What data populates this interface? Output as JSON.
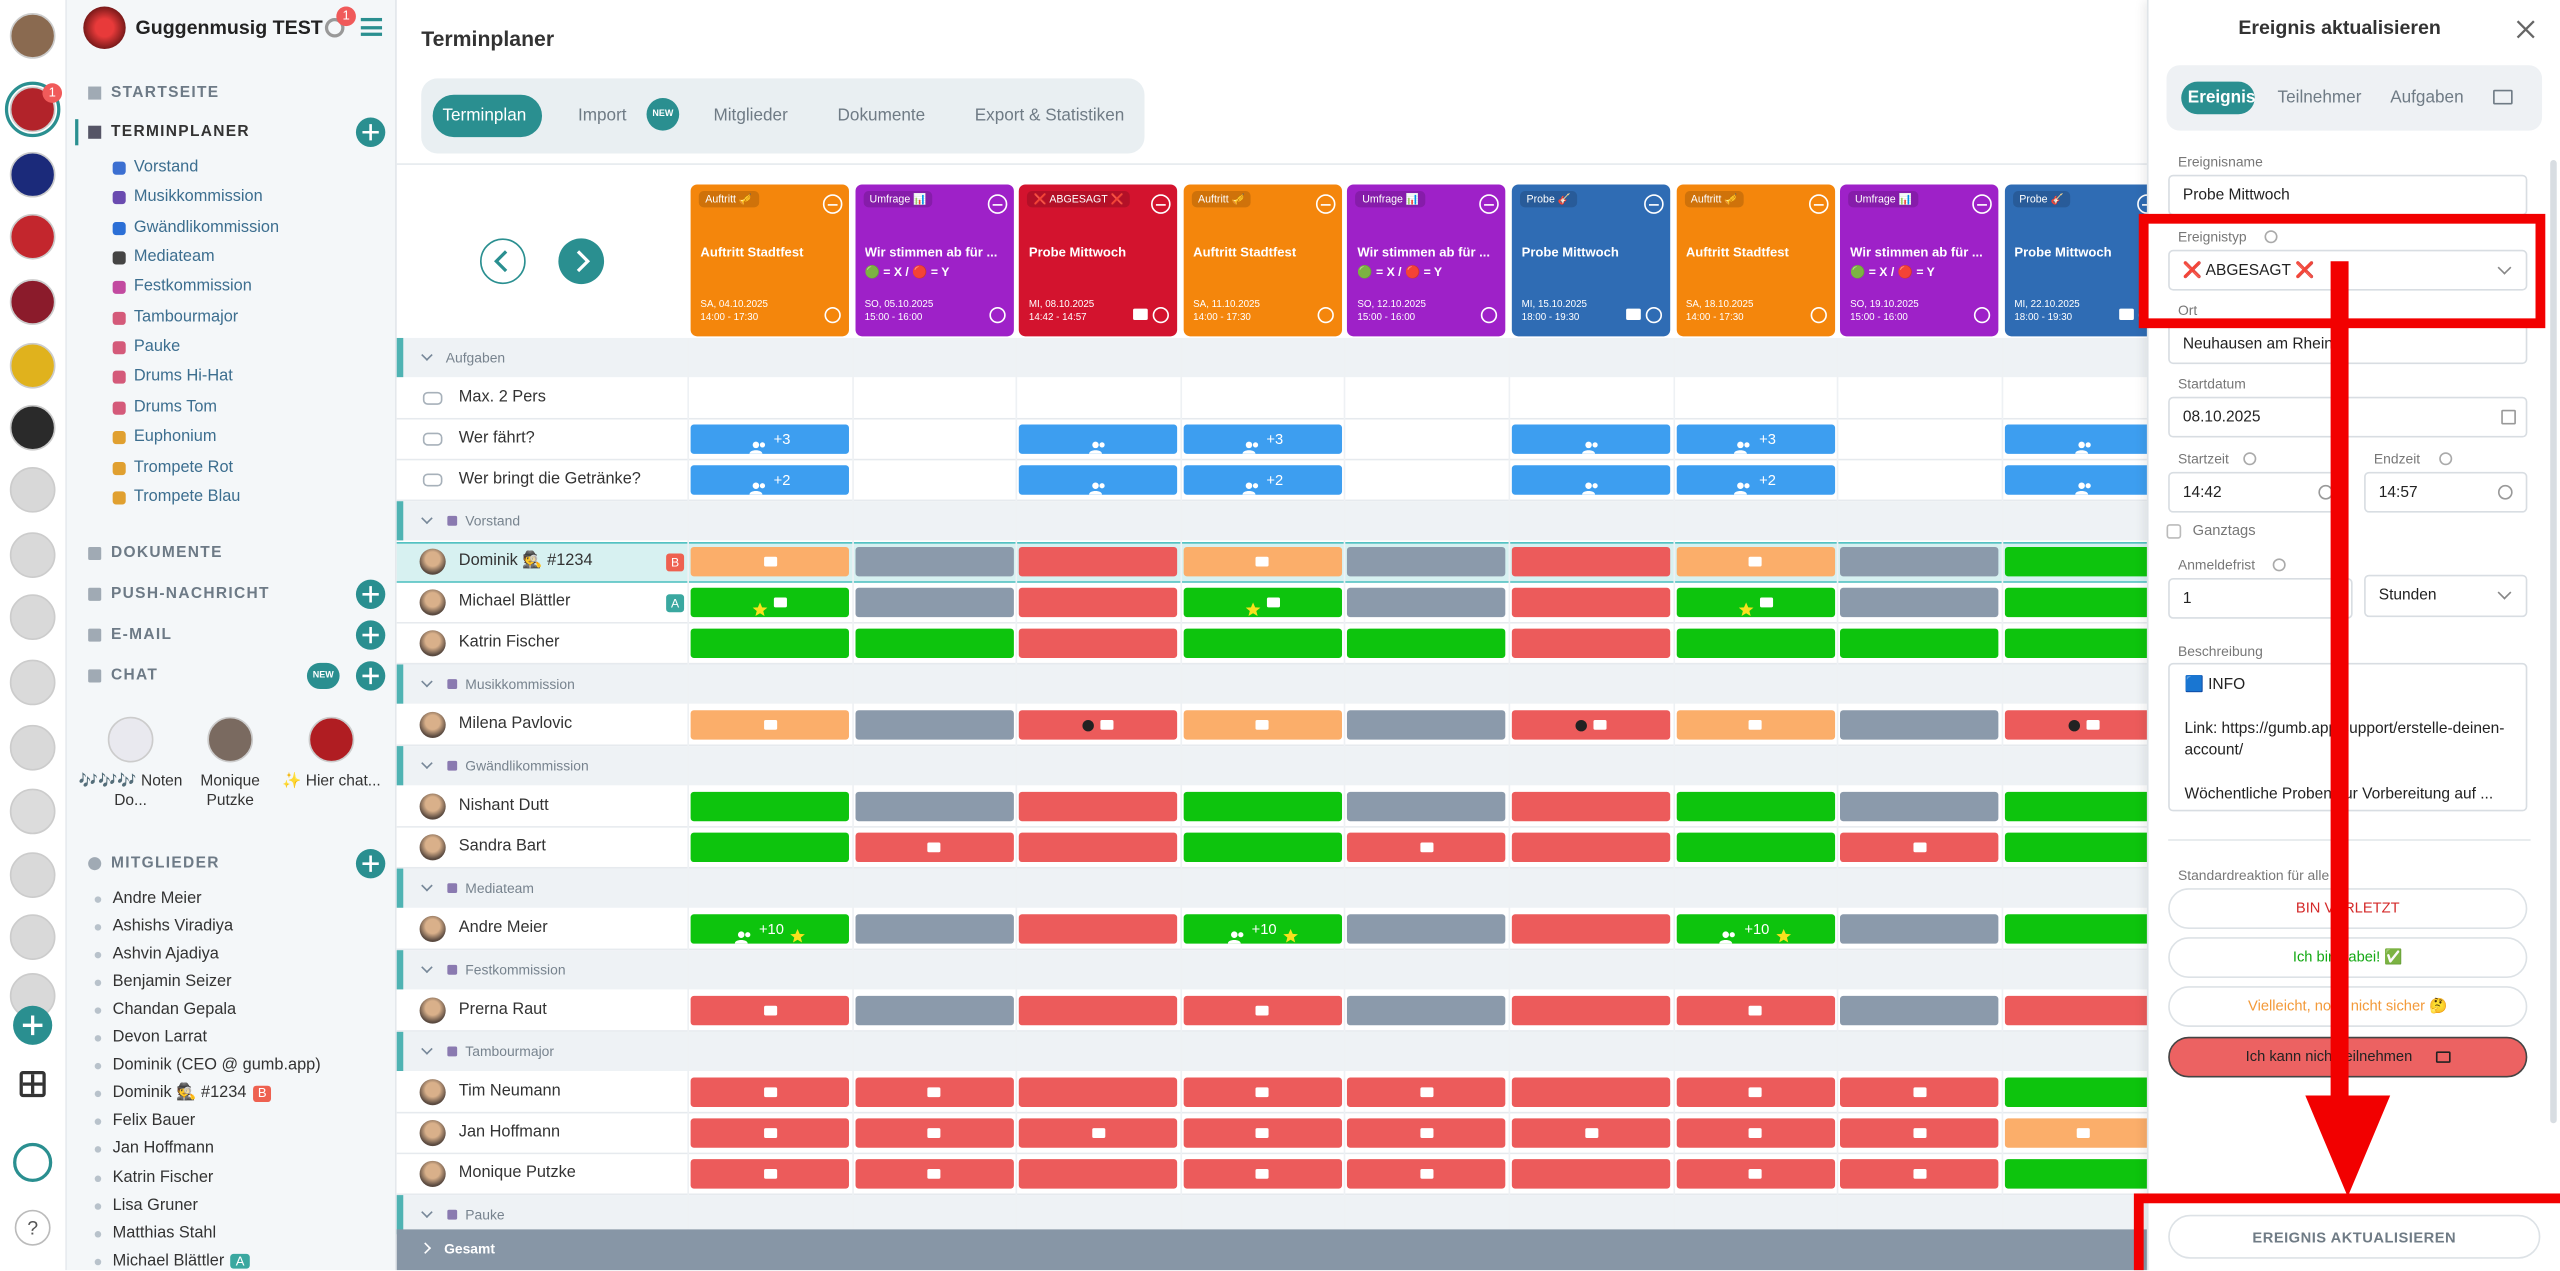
{
  "app": {
    "group_name": "Guggenmusig TEST",
    "notification_badge": "1",
    "help": "?"
  },
  "sidebar": {
    "startseite": "STARTSEITE",
    "terminplaner": "TERMINPLANER",
    "groups": [
      "Vorstand",
      "Musikkommission",
      "Gwändlikommission",
      "Mediateam",
      "Festkommission",
      "Tambourmajor",
      "Pauke",
      "Drums Hi-Hat",
      "Drums Tom",
      "Euphonium",
      "Trompete Rot",
      "Trompete Blau"
    ],
    "sections": [
      "DOKUMENTE",
      "PUSH-NACHRICHT",
      "E-MAIL",
      "CHAT"
    ],
    "chat_badge": "NEW",
    "chats": [
      "🎶🎶🎶 Noten Do...",
      "Monique Putzke",
      "✨ Hier chat..."
    ],
    "members_title": "MITGLIEDER",
    "members": [
      {
        "name": "Andre Meier"
      },
      {
        "name": "Ashishs Viradiya"
      },
      {
        "name": "Ashvin Ajadiya"
      },
      {
        "name": "Benjamin Seizer"
      },
      {
        "name": "Chandan Gepala"
      },
      {
        "name": "Devon Larrat"
      },
      {
        "name": "Dominik (CEO @ gumb.app)"
      },
      {
        "name": "Dominik 🕵️ #1234",
        "badge": "B"
      },
      {
        "name": "Felix Bauer"
      },
      {
        "name": "Jan Hoffmann"
      },
      {
        "name": "Katrin Fischer"
      },
      {
        "name": "Lisa Gruner"
      },
      {
        "name": "Matthias Stahl"
      },
      {
        "name": "Michael Blättler",
        "badge": "A"
      }
    ]
  },
  "header": {
    "title": "Terminplaner"
  },
  "tabs": {
    "items": [
      "Terminplan",
      "Import",
      "Mitglieder",
      "Dokumente",
      "Export & Statistiken"
    ],
    "active": 0,
    "import_badge": "NEW"
  },
  "events": [
    {
      "tag": "Auftritt 🎺",
      "title": "Auftritt Stadtfest",
      "date": "SA, 04.10.2025",
      "time": "14:00 - 17:30",
      "color": "#f4860c"
    },
    {
      "tag": "Umfrage 📊",
      "title": "Wir stimmen ab für ...",
      "subtitle": "🟢 = X / 🔴 = Y",
      "date": "SO, 05.10.2025",
      "time": "15:00 - 16:00",
      "color": "#9e21c8"
    },
    {
      "tag": "❌ ABGESAGT ❌",
      "title": "Probe Mittwoch",
      "date": "MI, 08.10.2025",
      "time": "14:42 - 14:57",
      "color": "#d3132e",
      "comment": true
    },
    {
      "tag": "Auftritt 🎺",
      "title": "Auftritt Stadtfest",
      "date": "SA, 11.10.2025",
      "time": "14:00 - 17:30",
      "color": "#f4860c"
    },
    {
      "tag": "Umfrage 📊",
      "title": "Wir stimmen ab für ...",
      "subtitle": "🟢 = X / 🔴 = Y",
      "date": "SO, 12.10.2025",
      "time": "15:00 - 16:00",
      "color": "#9e21c8"
    },
    {
      "tag": "Probe 🎸",
      "title": "Probe Mittwoch",
      "date": "MI, 15.10.2025",
      "time": "18:00 - 19:30",
      "color": "#2f6cb4",
      "comment": true
    },
    {
      "tag": "Auftritt 🎺",
      "title": "Auftritt Stadtfest",
      "date": "SA, 18.10.2025",
      "time": "14:00 - 17:30",
      "color": "#f4860c"
    },
    {
      "tag": "Umfrage 📊",
      "title": "Wir stimmen ab für ...",
      "subtitle": "🟢 = X / 🔴 = Y",
      "date": "SO, 19.10.2025",
      "time": "15:00 - 16:00",
      "color": "#9e21c8"
    },
    {
      "tag": "Probe 🎸",
      "title": "Probe Mittwoch",
      "date": "MI, 22.10.2025",
      "time": "18:00 - 19:30",
      "color": "#2f6cb4",
      "comment": true
    }
  ],
  "grid": {
    "rows": [
      {
        "kind": "section",
        "name": "Aufgaben"
      },
      {
        "kind": "task",
        "name": "Max. 2 Pers",
        "cells": [
          null,
          null,
          null,
          null,
          null,
          null,
          null,
          null,
          null
        ]
      },
      {
        "kind": "task",
        "name": "Wer fährt?",
        "cells": [
          "task",
          null,
          "task",
          "task",
          null,
          "task",
          "task",
          null,
          "task"
        ],
        "labels": [
          "+3",
          null,
          null,
          "+3",
          null,
          null,
          "+3",
          null,
          null
        ]
      },
      {
        "kind": "task",
        "name": "Wer bringt die Getränke?",
        "cells": [
          "task",
          null,
          "task",
          "task",
          null,
          "task",
          "task",
          null,
          "task"
        ],
        "labels": [
          "+2",
          null,
          null,
          "+2",
          null,
          null,
          "+2",
          null,
          null
        ]
      },
      {
        "kind": "section",
        "name": "Vorstand"
      },
      {
        "kind": "member",
        "name": "Dominik 🕵️ #1234",
        "badge": "B",
        "highlight": true,
        "cells": [
          "maybe comment",
          "unknown",
          "no",
          "maybe comment",
          "unknown",
          "no",
          "maybe comment",
          "unknown",
          "yes"
        ]
      },
      {
        "kind": "member",
        "name": "Michael Blättler",
        "badge": "A",
        "cells": [
          "yes star comment",
          "unknown",
          "no",
          "yes star comment",
          "unknown",
          "no",
          "yes star comment",
          "unknown",
          "yes"
        ]
      },
      {
        "kind": "member",
        "name": "Katrin Fischer",
        "cells": [
          "yes",
          "yes",
          "no",
          "yes",
          "yes",
          "no",
          "yes",
          "yes",
          "yes"
        ]
      },
      {
        "kind": "section",
        "name": "Musikkommission"
      },
      {
        "kind": "member",
        "name": "Milena Pavlovic",
        "cells": [
          "maybe comment",
          "unknown",
          "no dot comment",
          "maybe comment",
          "unknown",
          "no dot comment",
          "maybe comment",
          "unknown",
          "no dot comment"
        ]
      },
      {
        "kind": "section",
        "name": "Gwändlikommission"
      },
      {
        "kind": "member",
        "name": "Nishant Dutt",
        "cells": [
          "yes",
          "unknown",
          "no",
          "yes",
          "unknown",
          "no",
          "yes",
          "unknown",
          "yes"
        ]
      },
      {
        "kind": "member",
        "name": "Sandra Bart",
        "cells": [
          "yes",
          "no comment",
          "no",
          "yes",
          "no comment",
          "no",
          "yes",
          "no comment",
          "yes"
        ]
      },
      {
        "kind": "section",
        "name": "Mediateam"
      },
      {
        "kind": "member",
        "name": "Andre Meier",
        "cells": [
          "yes people star",
          "unknown",
          "no",
          "yes people star",
          "unknown",
          "no",
          "yes people star",
          "unknown",
          "yes"
        ],
        "labels": [
          "+10",
          null,
          null,
          "+10",
          null,
          null,
          "+10",
          null,
          null
        ]
      },
      {
        "kind": "section",
        "name": "Festkommission"
      },
      {
        "kind": "member",
        "name": "Prerna Raut",
        "cells": [
          "no comment",
          "unknown",
          "no",
          "no comment",
          "unknown",
          "no",
          "no comment",
          "unknown",
          "no"
        ]
      },
      {
        "kind": "section",
        "name": "Tambourmajor"
      },
      {
        "kind": "member",
        "name": "Tim Neumann",
        "cells": [
          "no comment",
          "no comment",
          "no",
          "no comment",
          "no comment",
          "no",
          "no comment",
          "no comment",
          "yes"
        ]
      },
      {
        "kind": "member",
        "name": "Jan Hoffmann",
        "cells": [
          "no comment",
          "no comment",
          "no comment",
          "no comment",
          "no comment",
          "no comment",
          "no comment",
          "no comment",
          "maybe comment"
        ]
      },
      {
        "kind": "member",
        "name": "Monique Putzke",
        "cells": [
          "no comment",
          "no comment",
          "no",
          "no comment",
          "no comment",
          "no",
          "no comment",
          "no comment",
          "yes"
        ]
      },
      {
        "kind": "section",
        "name": "Pauke"
      }
    ],
    "total": "Gesamt"
  },
  "panel": {
    "title": "Ereignis aktualisieren",
    "tabs": [
      "Ereignis",
      "Teilnehmer",
      "Aufgaben"
    ],
    "fields": [
      {
        "label": "Ereignisname",
        "value": "Probe Mittwoch"
      },
      {
        "label": "Ereignistyp",
        "value": "❌ ABGESAGT ❌"
      },
      {
        "label": "Ort",
        "value": "Neuhausen am Rhein"
      },
      {
        "label": "Startdatum",
        "value": "08.10.2025"
      },
      {
        "label": "Startzeit",
        "value": "14:42"
      },
      {
        "label": "Endzeit",
        "value": "14:57"
      },
      {
        "label": "Anmeldefrist",
        "value": "1"
      }
    ],
    "allday": "Ganztags",
    "unit": "Stunden",
    "description": {
      "label": "Beschreibung",
      "lines": [
        "🟦 INFO",
        "Link: https://gumb.app/support/erstelle-deinen-account/",
        "Wöchentliche Proben zur Vorbereitung auf ..."
      ]
    },
    "reaction_label": "Standardreaktion für alle",
    "buttons": [
      {
        "text": "BIN VERLETZT",
        "color": "#d42a2a"
      },
      {
        "text": "Ich bin dabei! ✅",
        "color": "#13a813"
      },
      {
        "text": "Vielleicht, noch nicht sicher 🤔",
        "color": "#f39a3a"
      },
      {
        "text": "Ich kann nicht teilnehmen",
        "color": "#222222",
        "filled": "#ec6262"
      }
    ],
    "submit": "EREIGNIS AKTUALISIEREN"
  }
}
